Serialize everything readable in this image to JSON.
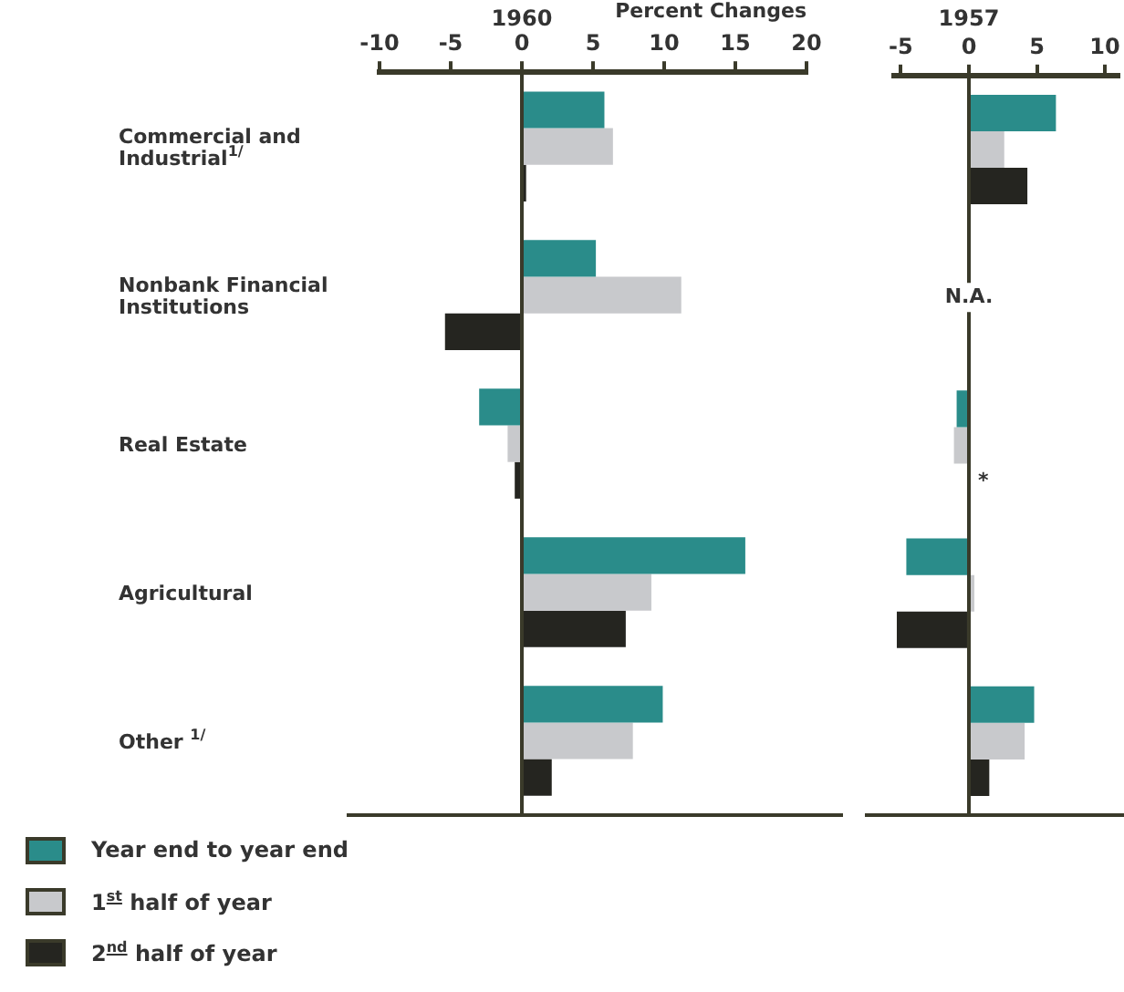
{
  "chart_data": [
    {
      "type": "bar",
      "orientation": "horizontal",
      "title": "1960",
      "xlabel": "Percent Changes",
      "categories": [
        "Commercial and Industrial$^{1/}$",
        "Nonbank Financial Institutions",
        "Real Estate",
        "Agricultural",
        "Other $^{1/}$"
      ],
      "series": [
        {
          "name": "Year end to year end",
          "color": "#2a8c8a",
          "values": [
            5.8,
            5.2,
            -3.0,
            15.7,
            9.9
          ]
        },
        {
          "name": "1$^{st}$ half of year",
          "color": "#c8c9cc",
          "values": [
            6.4,
            11.2,
            -1.0,
            9.1,
            7.8
          ]
        },
        {
          "name": "2$^{nd}$ half of year",
          "color": "#252520",
          "values": [
            0.3,
            -5.4,
            -0.5,
            7.3,
            2.1
          ]
        }
      ],
      "xlim": [
        -10,
        20
      ],
      "xticks": [
        -10,
        -5,
        0,
        5,
        10,
        15,
        20
      ],
      "legend": "bottom left"
    },
    {
      "type": "bar",
      "orientation": "horizontal",
      "title": "1957",
      "categories": [
        null,
        null,
        null,
        null,
        null
      ],
      "series": [
        {
          "color": "#2a8c8a",
          "values": [
            6.4,
            null,
            -0.9,
            -4.6,
            4.8
          ]
        },
        {
          "color": "#c8c9cc",
          "values": [
            2.6,
            null,
            -1.1,
            0.4,
            4.1
          ]
        },
        {
          "color": "#252520",
          "values": [
            4.3,
            null,
            null,
            -5.3,
            1.5
          ]
        }
      ],
      "xlim": [
        -5.5,
        11
      ],
      "xticks": [
        -5,
        0,
        5,
        10
      ],
      "tick_labels": "x",
      "annotations": [
        "N.A.",
        "*"
      ]
    }
  ]
}
